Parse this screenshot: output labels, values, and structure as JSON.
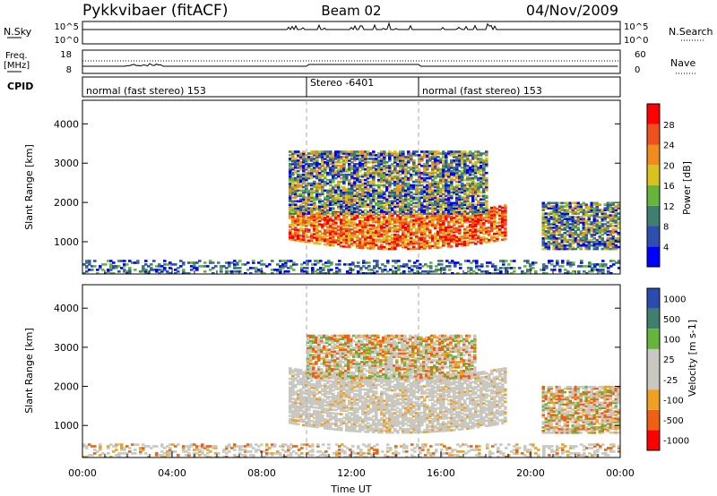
{
  "header": {
    "station": "Pykkvibaer (fitACF)",
    "beam": "Beam 02",
    "date": "04/Nov/2009"
  },
  "strip": {
    "nsky_label": "N.Sky",
    "nsky_ticks": [
      "10^5",
      "10^0"
    ],
    "nsearch_label": "N.Search",
    "nsearch_ticks": [
      "10^5",
      "10^0"
    ],
    "freq_label_top": "Freq.",
    "freq_label_bottom": "[MHz]",
    "freq_ticks": [
      "18",
      "8"
    ],
    "nave_label": "Nave",
    "nave_ticks": [
      "60",
      "0"
    ],
    "cpid_label": "CPID"
  },
  "cpid_segments": [
    {
      "label": "normal (fast stereo) 153",
      "start_hour": 0,
      "end_hour": 10.0
    },
    {
      "label": "Stereo -6401",
      "start_hour": 10.0,
      "end_hour": 15.0
    },
    {
      "label": "normal (fast stereo) 153",
      "start_hour": 15.0,
      "end_hour": 24.0
    }
  ],
  "chart_data": [
    {
      "type": "heatmap",
      "name": "power",
      "xlabel": "",
      "ylabel": "Slant Range [km]",
      "xlim": [
        0,
        24
      ],
      "ylim": [
        180,
        4600
      ],
      "yticks": [
        "1000",
        "2000",
        "3000",
        "4000"
      ],
      "colorbar": {
        "label": "Power [dB]",
        "ticks": [
          "4",
          "8",
          "12",
          "16",
          "20",
          "24",
          "28"
        ],
        "range": [
          0,
          30
        ],
        "colors": [
          "#0000ff",
          "#2f4fb0",
          "#3f7f6f",
          "#66b43c",
          "#d9c21c",
          "#f08c1e",
          "#f0501e",
          "#ff0000"
        ]
      },
      "echo_regions": [
        {
          "t0": 9.2,
          "t1": 18.8,
          "r0": 800,
          "r1": 1700,
          "level": "strong"
        },
        {
          "t0": 9.2,
          "t1": 18.0,
          "r0": 1700,
          "r1": 3300,
          "level": "medium"
        },
        {
          "t0": 0,
          "t1": 24,
          "r0": 180,
          "r1": 500,
          "level": "weak"
        },
        {
          "t0": 20.5,
          "t1": 24,
          "r0": 800,
          "r1": 2000,
          "level": "medium"
        }
      ]
    },
    {
      "type": "heatmap",
      "name": "velocity",
      "xlabel": "Time UT",
      "ylabel": "Slant Range [km]",
      "xlim": [
        0,
        24
      ],
      "ylim": [
        180,
        4600
      ],
      "xticks": [
        "00:00",
        "04:00",
        "08:00",
        "12:00",
        "16:00",
        "20:00",
        "00:00"
      ],
      "yticks": [
        "1000",
        "2000",
        "3000",
        "4000"
      ],
      "colorbar": {
        "label": "Velocity [m s-1]",
        "ticks": [
          "1000",
          "500",
          "100",
          "25",
          "-25",
          "-100",
          "-500",
          "-1000"
        ],
        "colors": [
          "#2a4bb0",
          "#3f7f6f",
          "#66b43c",
          "#c8c8c0",
          "#c8c8c0",
          "#f0a020",
          "#f06010",
          "#ff0000"
        ]
      },
      "echo_regions": [
        {
          "t0": 9.2,
          "t1": 18.8,
          "r0": 800,
          "r1": 2200,
          "level": "ground"
        },
        {
          "t0": 10.0,
          "t1": 17.5,
          "r0": 2200,
          "r1": 3300,
          "level": "mixed"
        },
        {
          "t0": 0,
          "t1": 24,
          "r0": 180,
          "r1": 500,
          "level": "weak"
        },
        {
          "t0": 20.5,
          "t1": 24,
          "r0": 800,
          "r1": 2000,
          "level": "mixed"
        }
      ]
    }
  ]
}
